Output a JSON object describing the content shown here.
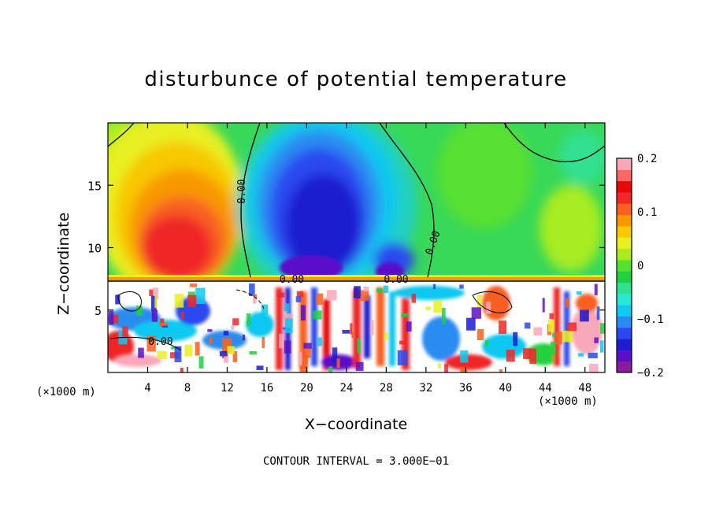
{
  "chart_data": {
    "type": "heatmap",
    "title": "disturbunce of potential temperature",
    "xlabel": "X−coordinate",
    "ylabel": "Z−coordinate",
    "x_unit_left": "(×1000 m)",
    "x_unit_right": "(×1000 m)",
    "footer": "CONTOUR INTERVAL = 3.000E−01",
    "xlim": [
      0,
      50
    ],
    "ylim": [
      0,
      20
    ],
    "x_ticks": [
      "4",
      "8",
      "12",
      "16",
      "20",
      "24",
      "28",
      "32",
      "36",
      "40",
      "44",
      "48"
    ],
    "y_ticks": [
      "5",
      "10",
      "15"
    ],
    "colorbar": {
      "range": [
        -0.2,
        0.2
      ],
      "tick_labels": [
        "0.2",
        "0.1",
        "0",
        "−0.1",
        "−0.2"
      ],
      "colors": [
        "#8c1a9c",
        "#5a10c8",
        "#1c1cd0",
        "#2a4af0",
        "#2a8cf0",
        "#10c8f0",
        "#28e8d8",
        "#30e090",
        "#20d040",
        "#58e030",
        "#a8ec20",
        "#e8f020",
        "#f8c800",
        "#f89800",
        "#f86020",
        "#f02828",
        "#e80808",
        "#f86868",
        "#f8a8b8"
      ]
    },
    "contour_labels": [
      {
        "text": "0.00",
        "x": 13.8,
        "z": 14.5,
        "rotate": -90
      },
      {
        "text": "0.00",
        "x": 33.0,
        "z": 10.3,
        "rotate": -70
      },
      {
        "text": "0.00",
        "x": 18.5,
        "z": 7.2,
        "rotate": 0
      },
      {
        "text": "0.00",
        "x": 29.0,
        "z": 7.2,
        "rotate": 0
      },
      {
        "text": "0.00",
        "x": 5.3,
        "z": 2.2,
        "rotate": 0
      }
    ]
  }
}
